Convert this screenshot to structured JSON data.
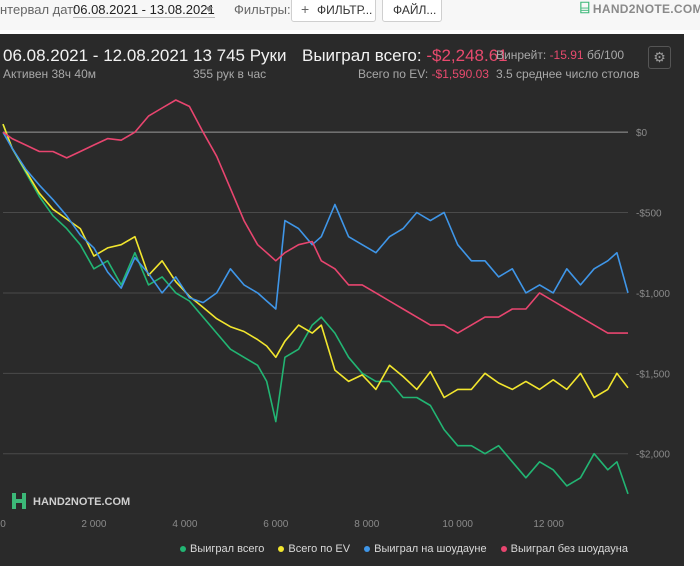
{
  "filters_bar": {
    "date_label": "нтервал дат:",
    "date_range": "06.08.2021 - 13.08.2021",
    "filters_label": "Фильтры:",
    "filter_button": "ФИЛЬТР...",
    "file_button": "ФАЙЛ...",
    "logo_text": "HAND2NOTE.COM"
  },
  "summary": {
    "period": "06.08.2021 - 12.08.2021",
    "active": "Активен 38ч 40м",
    "hands": "13 745 Руки",
    "hands_per_hour": "355 рук в час",
    "won_label": "Выиграл всего:",
    "won_value": "-$2,248.61",
    "ev_label": "Всего по EV:",
    "ev_value": "-$1,590.03",
    "winrate_label": "Винрейт:",
    "winrate_value": "-15.91",
    "winrate_unit": "бб/100",
    "tables": "3.5 среднее число столов"
  },
  "watermark": "HAND2NOTE.COM",
  "colors": {
    "won_total": "#22b573",
    "ev": "#f2e62e",
    "showdown": "#3f96e8",
    "non_showdown": "#e8456f",
    "panel_bg": "#2a2a2a"
  },
  "chart_data": {
    "type": "line",
    "xlabel": "",
    "ylabel": "",
    "xlim": [
      0,
      13745
    ],
    "ylim": [
      -2350,
      200
    ],
    "x_ticks": [
      0,
      2000,
      4000,
      6000,
      8000,
      10000,
      12000
    ],
    "x_tick_labels": [
      "0",
      "2 000",
      "4 000",
      "6 000",
      "8 000",
      "10 000",
      "12 000"
    ],
    "y_ticks": [
      0,
      -500,
      -1000,
      -1500,
      -2000
    ],
    "y_tick_labels": [
      "$0",
      "-$500",
      "-$1,000",
      "-$1,500",
      "-$2,000"
    ],
    "grid": "horizontal",
    "legend_position": "bottom",
    "x": [
      0,
      200,
      500,
      800,
      1100,
      1400,
      1700,
      2000,
      2300,
      2600,
      2900,
      3200,
      3500,
      3800,
      4100,
      4400,
      4700,
      5000,
      5300,
      5600,
      5800,
      6000,
      6200,
      6500,
      6800,
      7000,
      7300,
      7600,
      7900,
      8200,
      8500,
      8800,
      9100,
      9400,
      9700,
      10000,
      10300,
      10600,
      10900,
      11200,
      11500,
      11800,
      12100,
      12400,
      12700,
      13000,
      13300,
      13500,
      13745
    ],
    "series": [
      {
        "name": "Выиграл всего",
        "color": "#22b573",
        "values": [
          50,
          -100,
          -250,
          -400,
          -520,
          -600,
          -700,
          -850,
          -800,
          -950,
          -750,
          -950,
          -900,
          -1000,
          -1050,
          -1150,
          -1250,
          -1350,
          -1400,
          -1450,
          -1550,
          -1800,
          -1400,
          -1350,
          -1200,
          -1150,
          -1250,
          -1400,
          -1500,
          -1550,
          -1550,
          -1650,
          -1650,
          -1700,
          -1850,
          -1950,
          -1950,
          -2000,
          -1950,
          -2050,
          -2150,
          -2050,
          -2100,
          -2200,
          -2150,
          -2000,
          -2100,
          -2050,
          -2250
        ]
      },
      {
        "name": "Всего по EV",
        "color": "#f2e62e",
        "values": [
          50,
          -100,
          -240,
          -380,
          -480,
          -540,
          -600,
          -770,
          -720,
          -700,
          -650,
          -890,
          -800,
          -930,
          -1020,
          -1090,
          -1160,
          -1210,
          -1240,
          -1290,
          -1330,
          -1400,
          -1300,
          -1200,
          -1250,
          -1200,
          -1480,
          -1550,
          -1510,
          -1600,
          -1450,
          -1520,
          -1600,
          -1490,
          -1650,
          -1600,
          -1600,
          -1500,
          -1560,
          -1600,
          -1550,
          -1600,
          -1540,
          -1600,
          -1500,
          -1650,
          -1600,
          -1500,
          -1590
        ]
      },
      {
        "name": "Выиграл на шоудауне",
        "color": "#3f96e8",
        "values": [
          0,
          -100,
          -230,
          -330,
          -420,
          -520,
          -640,
          -720,
          -870,
          -970,
          -780,
          -880,
          -1000,
          -900,
          -1030,
          -1060,
          -1000,
          -850,
          -950,
          -1000,
          -1050,
          -1100,
          -550,
          -600,
          -700,
          -650,
          -450,
          -650,
          -700,
          -750,
          -650,
          -600,
          -500,
          -550,
          -500,
          -700,
          -800,
          -800,
          -900,
          -850,
          -1000,
          -950,
          -1000,
          -850,
          -950,
          -850,
          -800,
          -750,
          -1000
        ]
      },
      {
        "name": "Выиграл без шоудауна",
        "color": "#e8456f",
        "values": [
          0,
          -40,
          -80,
          -120,
          -120,
          -160,
          -120,
          -80,
          -40,
          -50,
          0,
          100,
          150,
          200,
          160,
          0,
          -150,
          -350,
          -550,
          -700,
          -750,
          -800,
          -750,
          -700,
          -680,
          -800,
          -850,
          -950,
          -950,
          -1000,
          -1050,
          -1100,
          -1150,
          -1200,
          -1200,
          -1250,
          -1200,
          -1150,
          -1150,
          -1100,
          -1100,
          -1000,
          -1050,
          -1100,
          -1150,
          -1200,
          -1250,
          -1250,
          -1250
        ]
      }
    ]
  }
}
